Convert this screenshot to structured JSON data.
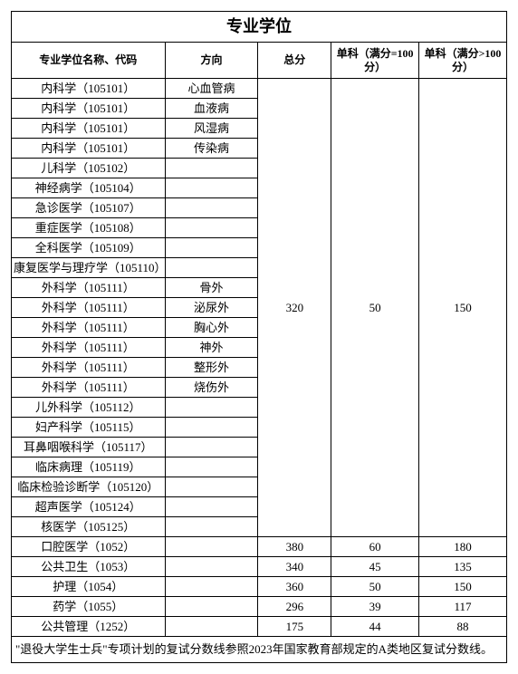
{
  "title": "专业学位",
  "headers": {
    "name": "专业学位名称、代码",
    "direction": "方向",
    "total": "总分",
    "subject1": "单科（满分=100分）",
    "subject2": "单科（满分>100分）"
  },
  "group1": {
    "total": "320",
    "s1": "50",
    "s2": "150",
    "rows": [
      {
        "name": "内科学（105101）",
        "dir": "心血管病"
      },
      {
        "name": "内科学（105101）",
        "dir": "血液病"
      },
      {
        "name": "内科学（105101）",
        "dir": "风湿病"
      },
      {
        "name": "内科学（105101）",
        "dir": "传染病"
      },
      {
        "name": "儿科学（105102）",
        "dir": ""
      },
      {
        "name": "神经病学（105104）",
        "dir": ""
      },
      {
        "name": "急诊医学（105107）",
        "dir": ""
      },
      {
        "name": "重症医学（105108）",
        "dir": ""
      },
      {
        "name": "全科医学（105109）",
        "dir": ""
      },
      {
        "name": "康复医学与理疗学（105110）",
        "dir": ""
      },
      {
        "name": "外科学（105111）",
        "dir": "骨外"
      },
      {
        "name": "外科学（105111）",
        "dir": "泌尿外"
      },
      {
        "name": "外科学（105111）",
        "dir": "胸心外"
      },
      {
        "name": "外科学（105111）",
        "dir": "神外"
      },
      {
        "name": "外科学（105111）",
        "dir": "整形外"
      },
      {
        "name": "外科学（105111）",
        "dir": "烧伤外"
      },
      {
        "name": "儿外科学（105112）",
        "dir": ""
      },
      {
        "name": "妇产科学（105115）",
        "dir": ""
      },
      {
        "name": "耳鼻咽喉科学（105117）",
        "dir": ""
      },
      {
        "name": "临床病理（105119）",
        "dir": ""
      },
      {
        "name": "临床检验诊断学（105120）",
        "dir": ""
      },
      {
        "name": "超声医学（105124）",
        "dir": ""
      },
      {
        "name": "核医学（105125）",
        "dir": ""
      }
    ]
  },
  "others": [
    {
      "name": "口腔医学（1052）",
      "dir": "",
      "total": "380",
      "s1": "60",
      "s2": "180"
    },
    {
      "name": "公共卫生（1053）",
      "dir": "",
      "total": "340",
      "s1": "45",
      "s2": "135"
    },
    {
      "name": "护理（1054）",
      "dir": "",
      "total": "360",
      "s1": "50",
      "s2": "150"
    },
    {
      "name": "药学（1055）",
      "dir": "",
      "total": "296",
      "s1": "39",
      "s2": "117"
    },
    {
      "name": "公共管理（1252）",
      "dir": "",
      "total": "175",
      "s1": "44",
      "s2": "88"
    }
  ],
  "footnote": "\"退役大学生士兵\"专项计划的复试分数线参照2023年国家教育部规定的A类地区复试分数线。"
}
